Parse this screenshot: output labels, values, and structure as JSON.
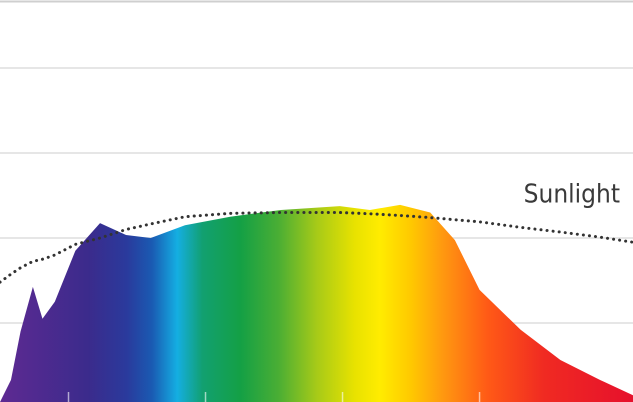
{
  "chart_data": {
    "type": "area",
    "x": [
      350,
      358,
      365,
      374,
      381,
      390,
      405,
      423,
      442,
      460,
      485,
      518,
      555,
      598,
      620,
      642,
      664,
      682,
      700,
      730,
      759,
      788,
      812
    ],
    "series": [
      {
        "values": [
          1.4,
          6.6,
          18,
          28.5,
          21,
          25,
          37,
          43.5,
          40.7,
          40,
          43,
          45,
          46.6,
          47.5,
          46.6,
          47.8,
          46,
          39.5,
          27.8,
          18.4,
          11.3,
          6.6,
          3
        ]
      },
      {
        "name": "Sunlight",
        "color": "#333333",
        "dashed": true,
        "values": [
          29.6,
          31.5,
          33,
          34.5,
          35,
          36,
          38.5,
          40,
          42,
          43.3,
          45,
          45.8,
          46,
          46,
          45.7,
          45.3,
          44.8,
          44.3,
          43.8,
          42.5,
          41.4,
          40.2,
          39
        ]
      }
    ],
    "xlim": [
      350,
      812
    ],
    "xticks": [
      400,
      500,
      600,
      700
    ],
    "ylim": [
      0,
      96
    ],
    "yticks": [
      20,
      40,
      60,
      80
    ],
    "grid": true
  }
}
